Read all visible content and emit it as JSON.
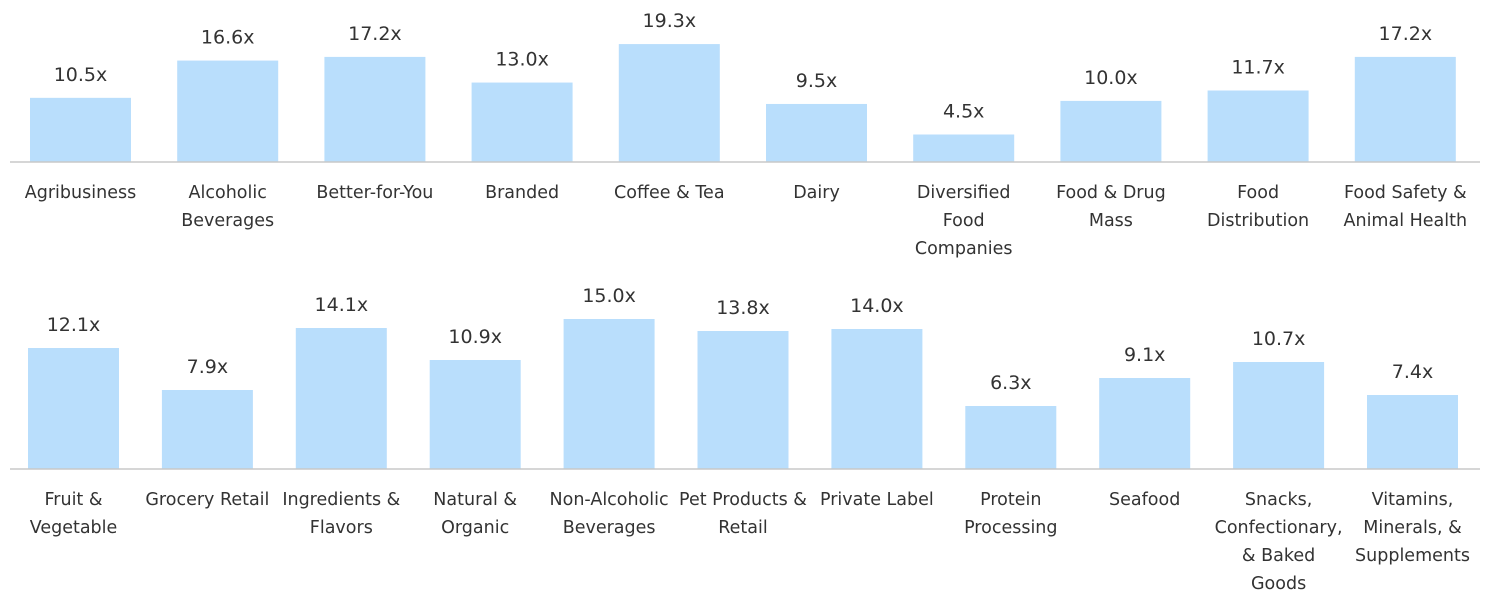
{
  "chart_data": [
    {
      "type": "bar",
      "color": "#b9defc",
      "categories": [
        "Agribusiness",
        "Alcoholic Beverages",
        "Better-for-You",
        "Branded",
        "Coffee & Tea",
        "Dairy",
        "Diversified Food Companies",
        "Food & Drug Mass",
        "Food Distribution",
        "Food Safety & Animal Health"
      ],
      "values": [
        10.5,
        16.6,
        17.2,
        13.0,
        19.3,
        9.5,
        4.5,
        10.0,
        11.7,
        17.2
      ],
      "value_labels": [
        "10.5x",
        "16.6x",
        "17.2x",
        "13.0x",
        "19.3x",
        "9.5x",
        "4.5x",
        "10.0x",
        "11.7x",
        "17.2x"
      ]
    },
    {
      "type": "bar",
      "color": "#b9defc",
      "categories": [
        "Fruit & Vegetable",
        "Grocery Retail",
        "Ingredients & Flavors",
        "Natural & Organic",
        "Non-Alcoholic Beverages",
        "Pet Products & Retail",
        "Private Label",
        "Protein Processing",
        "Seafood",
        "Snacks, Confectionary, & Baked Goods",
        "Vitamins, Minerals, & Supplements"
      ],
      "values": [
        12.1,
        7.9,
        14.1,
        10.9,
        15.0,
        13.8,
        14.0,
        6.3,
        9.1,
        10.7,
        7.4
      ],
      "value_labels": [
        "12.1x",
        "7.9x",
        "14.1x",
        "10.9x",
        "15.0x",
        "13.8x",
        "14.0x",
        "6.3x",
        "9.1x",
        "10.7x",
        "7.4x"
      ]
    }
  ]
}
